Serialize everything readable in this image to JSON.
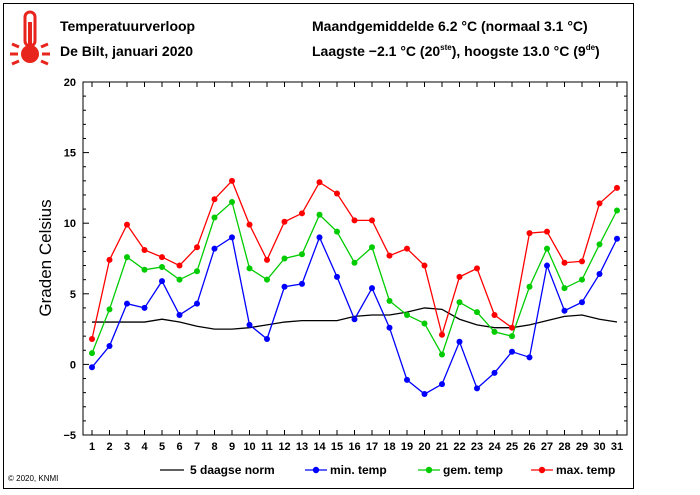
{
  "header": {
    "title": "Temperatuurverloop",
    "subtitle": "De Bilt, januari 2020",
    "summary_line1": "Maandgemiddelde 6.2 °C (normaal 3.1 °C)",
    "summary_line2_a": "Laagste −2.1 °C (20",
    "summary_line2_sup1": "ste",
    "summary_line2_b": "), hoogste 13.0 °C (9",
    "summary_line2_sup2": "de",
    "summary_line2_c": ")"
  },
  "icon": {
    "name": "thermometer-icon",
    "color": "#e8251c"
  },
  "footer": {
    "copyright": "© 2020, KNMI"
  },
  "chart_data": {
    "type": "line",
    "ylabel": "Graden Celsius",
    "ylim": [
      -5,
      20
    ],
    "yticks": [
      -5,
      0,
      5,
      10,
      15,
      20
    ],
    "grid": false,
    "legend_position": "bottom",
    "x": [
      1,
      2,
      3,
      4,
      5,
      6,
      7,
      8,
      9,
      10,
      11,
      12,
      13,
      14,
      15,
      16,
      17,
      18,
      19,
      20,
      21,
      22,
      23,
      24,
      25,
      26,
      27,
      28,
      29,
      30,
      31
    ],
    "series": [
      {
        "name": "5 daagse norm",
        "color": "#000000",
        "markers": false,
        "values": [
          3.0,
          3.0,
          3.0,
          3.0,
          3.2,
          3.0,
          2.7,
          2.5,
          2.5,
          2.6,
          2.8,
          3.0,
          3.1,
          3.1,
          3.1,
          3.4,
          3.5,
          3.5,
          3.7,
          4.0,
          3.9,
          3.2,
          2.8,
          2.6,
          2.6,
          2.8,
          3.1,
          3.4,
          3.5,
          3.2,
          3.0
        ]
      },
      {
        "name": "min. temp",
        "color": "#0000ff",
        "markers": true,
        "values": [
          -0.2,
          1.3,
          4.3,
          4.0,
          5.9,
          3.5,
          4.3,
          8.2,
          9.0,
          2.8,
          1.8,
          5.5,
          5.7,
          9.0,
          6.2,
          3.2,
          5.4,
          2.6,
          -1.1,
          -2.1,
          -1.4,
          1.6,
          -1.7,
          -0.6,
          0.9,
          0.5,
          7.0,
          3.8,
          4.4,
          6.4,
          8.9
        ]
      },
      {
        "name": "gem. temp",
        "color": "#00cc00",
        "markers": true,
        "values": [
          0.8,
          3.9,
          7.6,
          6.7,
          6.9,
          6.0,
          6.6,
          10.4,
          11.5,
          6.8,
          6.0,
          7.5,
          7.8,
          10.6,
          9.4,
          7.2,
          8.3,
          4.5,
          3.5,
          2.9,
          0.7,
          4.4,
          3.7,
          2.3,
          2.0,
          5.5,
          8.2,
          5.4,
          6.0,
          8.5,
          10.9
        ]
      },
      {
        "name": "max. temp",
        "color": "#ff0000",
        "markers": true,
        "values": [
          1.8,
          7.4,
          9.9,
          8.1,
          7.6,
          7.0,
          8.3,
          11.7,
          13.0,
          9.9,
          7.4,
          10.1,
          10.7,
          12.9,
          12.1,
          10.2,
          10.2,
          7.7,
          8.2,
          7.0,
          2.1,
          6.2,
          6.8,
          3.5,
          2.6,
          9.3,
          9.4,
          7.2,
          7.3,
          11.4,
          12.5
        ]
      }
    ]
  }
}
